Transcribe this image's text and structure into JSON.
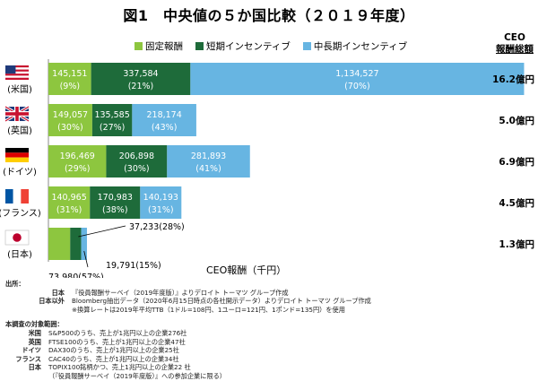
{
  "title": "図1　中央値の５か国比較（２０１９年度）",
  "legend": [
    {
      "label": "固定報酬",
      "color": "#8dc63f"
    },
    {
      "label": "短期インセンティブ",
      "color": "#1e6b3a"
    },
    {
      "label": "中長期インセンティブ",
      "color": "#67b5e2"
    }
  ],
  "ceo_header": {
    "line1": "CEO",
    "line2": "報酬総額"
  },
  "chart_data": {
    "type": "bar",
    "orientation": "horizontal",
    "stacked": true,
    "unit": "千円",
    "xlabel": "CEO報酬（千円）",
    "categories": [
      "(米国)",
      "(英国)",
      "(ドイツ)",
      "(フランス)",
      "(日本)"
    ],
    "series": [
      {
        "name": "固定報酬",
        "color": "#8dc63f",
        "values": [
          145151,
          149057,
          196469,
          140965,
          73980
        ],
        "pct": [
          "(9%)",
          "(30%)",
          "(29%)",
          "(31%)",
          "(57%)"
        ]
      },
      {
        "name": "短期インセンティブ",
        "color": "#1e6b3a",
        "values": [
          337584,
          135585,
          206898,
          170983,
          37233
        ],
        "pct": [
          "(21%)",
          "(27%)",
          "(30%)",
          "(38%)",
          "(28%)"
        ]
      },
      {
        "name": "中長期インセンティブ",
        "color": "#67b5e2",
        "values": [
          1134527,
          218174,
          281893,
          140193,
          19791
        ],
        "pct": [
          "(70%)",
          "(43%)",
          "(41%)",
          "(31%)",
          "(15%)"
        ]
      }
    ],
    "totals": [
      "16.2億円",
      "5.0億円",
      "6.9億円",
      "4.5億円",
      "1.3億円"
    ],
    "value_labels": [
      [
        "145,151",
        "337,584",
        "1,134,527"
      ],
      [
        "149,057",
        "135,585",
        "218,174"
      ],
      [
        "196,469",
        "206,898",
        "281,893"
      ],
      [
        "140,965",
        "170,983",
        "140,193"
      ],
      [
        "73,980(57%)",
        "37,233(28%)",
        "19,791(15%)"
      ]
    ],
    "flags": [
      "us-flag-icon",
      "uk-flag-icon",
      "germany-flag-icon",
      "france-flag-icon",
      "japan-flag-icon"
    ]
  },
  "notes": {
    "source_heading": "出所：",
    "sources": [
      {
        "label": "日本",
        "text": "『役員報酬サーベイ（2019年度版）』よりデロイト トーマツ グループ作成"
      },
      {
        "label": "日本以外",
        "text": "Bloomberg抽出データ（2020年6月15日時点の各社開示データ）よりデロイト トーマツ グループ作成"
      },
      {
        "label": "",
        "text": "※換算レートは2019年平均TTB（1ドル=108円、1ユーロ=121円、1ポンド=135円）を使用"
      }
    ],
    "scope_heading": "本調査の対象範囲：",
    "scope": [
      {
        "label": "米国",
        "text": "S&P500のうち、売上が1兆円以上の企業276社"
      },
      {
        "label": "英国",
        "text": "FTSE100のうち、売上が1兆円以上の企業47社"
      },
      {
        "label": "ドイツ",
        "text": "DAX30のうち、売上が1兆円以上の企業25社"
      },
      {
        "label": "フランス",
        "text": "CAC40のうち、売上が1兆円以上の企業34社"
      },
      {
        "label": "日本",
        "text": "TOPIX100銘柄かつ、売上1兆円以上の企業22 社"
      },
      {
        "label": "",
        "text": "（『役員報酬サーベイ（2019年度版）』への参加企業に限る）"
      }
    ]
  }
}
